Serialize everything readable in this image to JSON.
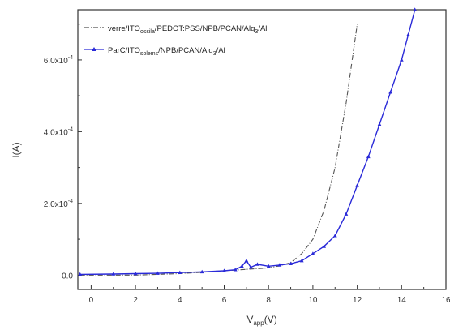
{
  "chart_data": {
    "type": "line",
    "xlabel_main": "V",
    "xlabel_sub": "app",
    "xlabel_unit": "(V)",
    "ylabel": "I(A)",
    "xlim": [
      -0.6,
      16
    ],
    "ylim": [
      -4e-05,
      0.00074
    ],
    "x_ticks": [
      0,
      2,
      4,
      6,
      8,
      10,
      12,
      14,
      16
    ],
    "x_tick_labels": [
      "0",
      "2",
      "4",
      "6",
      "8",
      "10",
      "12",
      "14",
      "16"
    ],
    "y_ticks": [
      0,
      0.0002,
      0.0004,
      0.0006
    ],
    "y_tick_labels": [
      {
        "base": "0.0",
        "exp": ""
      },
      {
        "base": "2.0x10",
        "exp": "-4"
      },
      {
        "base": "4.0x10",
        "exp": "-4"
      },
      {
        "base": "6.0x10",
        "exp": "-4"
      }
    ],
    "legend_position": "top-left",
    "series": [
      {
        "legend": {
          "p1": "verre/ITO",
          "p2": "ossila",
          "p3": "/PEDOT:PSS/NPB/PCAN/Alq",
          "p4": "3",
          "p5": "/Al"
        },
        "color": "#555555",
        "dash": true,
        "marker": "none",
        "x": [
          -0.5,
          1,
          2,
          3,
          4,
          5,
          6,
          7,
          8,
          8.5,
          9,
          9.5,
          10,
          10.5,
          11,
          11.5,
          12
        ],
        "y": [
          0.0,
          0.0,
          0.0,
          2e-06,
          4e-06,
          8e-06,
          1.2e-05,
          1.6e-05,
          2e-05,
          2.6e-05,
          3.5e-05,
          6e-05,
          0.0001,
          0.00018,
          0.0003,
          0.00048,
          0.0007
        ]
      },
      {
        "legend": {
          "p1": "ParC/ITO",
          "p2": "solems",
          "p3": "/NPB/PCAN/Alq",
          "p4": "3",
          "p5": "/Al"
        },
        "color": "#2a2ad8",
        "dash": false,
        "marker": "triangle",
        "x": [
          -0.5,
          1,
          2,
          3,
          4,
          5,
          6,
          6.5,
          6.8,
          7.0,
          7.2,
          7.5,
          8,
          8.5,
          9,
          9.5,
          10,
          10.5,
          11,
          11.5,
          12,
          12.5,
          13,
          13.5,
          14,
          14.3,
          14.6
        ],
        "y": [
          2e-06,
          3e-06,
          4e-06,
          5e-06,
          7e-06,
          9e-06,
          1.2e-05,
          1.5e-05,
          2.5e-05,
          4e-05,
          2.2e-05,
          3e-05,
          2.5e-05,
          2.8e-05,
          3.2e-05,
          4e-05,
          6e-05,
          8e-05,
          0.00011,
          0.00017,
          0.00025,
          0.00033,
          0.00042,
          0.00051,
          0.0006,
          0.00067,
          0.00074
        ]
      }
    ]
  }
}
